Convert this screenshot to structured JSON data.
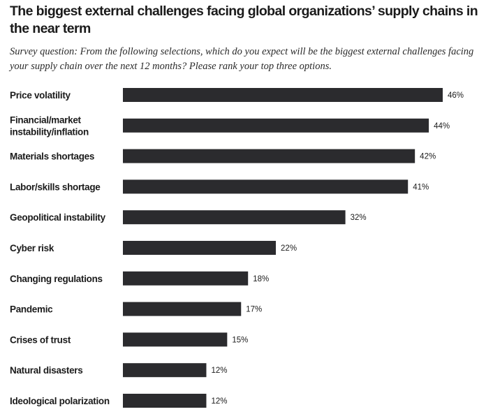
{
  "chart_data": {
    "type": "bar",
    "orientation": "horizontal",
    "title": "The biggest external challenges facing global organizations’ supply chains in the near term",
    "subtitle": "Survey question: From the following selections, which do you expect will be the biggest external challenges facing your supply chain over the next 12 months? Please rank your top three options.",
    "categories": [
      [
        "Price volatility"
      ],
      [
        "Financial/market",
        "instability/inflation"
      ],
      [
        "Materials shortages"
      ],
      [
        "Labor/skills shortage"
      ],
      [
        "Geopolitical instability"
      ],
      [
        "Cyber risk"
      ],
      [
        "Changing regulations"
      ],
      [
        "Pandemic"
      ],
      [
        "Crises of trust"
      ],
      [
        "Natural disasters"
      ],
      [
        "Ideological polarization"
      ]
    ],
    "values": [
      46,
      44,
      42,
      41,
      32,
      22,
      18,
      17,
      15,
      12,
      12
    ],
    "value_labels": [
      "46%",
      "44%",
      "42%",
      "41%",
      "32%",
      "22%",
      "18%",
      "17%",
      "15%",
      "12%",
      "12%"
    ],
    "unit": "%",
    "xlim": [
      0,
      46
    ],
    "bar_color": "#2b2b2e",
    "grid": false,
    "legend": "none"
  }
}
